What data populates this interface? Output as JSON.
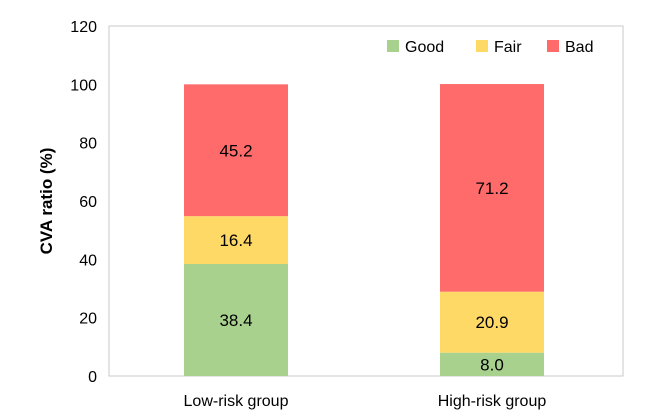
{
  "chart_data": {
    "type": "bar",
    "stacked": true,
    "categories": [
      "Low-risk group",
      "High-risk group"
    ],
    "series": [
      {
        "name": "Good",
        "values": [
          38.4,
          8.0
        ],
        "color": "#a9d18e"
      },
      {
        "name": "Fair",
        "values": [
          16.4,
          20.9
        ],
        "color": "#ffd966"
      },
      {
        "name": "Bad",
        "values": [
          45.2,
          71.2
        ],
        "color": "#ff6b6b"
      }
    ],
    "data_labels": [
      [
        "38.4",
        "8.0"
      ],
      [
        "16.4",
        "20.9"
      ],
      [
        "45.2",
        "71.2"
      ]
    ],
    "title": "",
    "xlabel": "",
    "ylabel": "CVA ratio (%)",
    "ylim": [
      0,
      120
    ],
    "yticks": [
      0,
      20,
      40,
      60,
      80,
      100,
      120
    ],
    "legend_position": "top-right",
    "grid": false
  }
}
